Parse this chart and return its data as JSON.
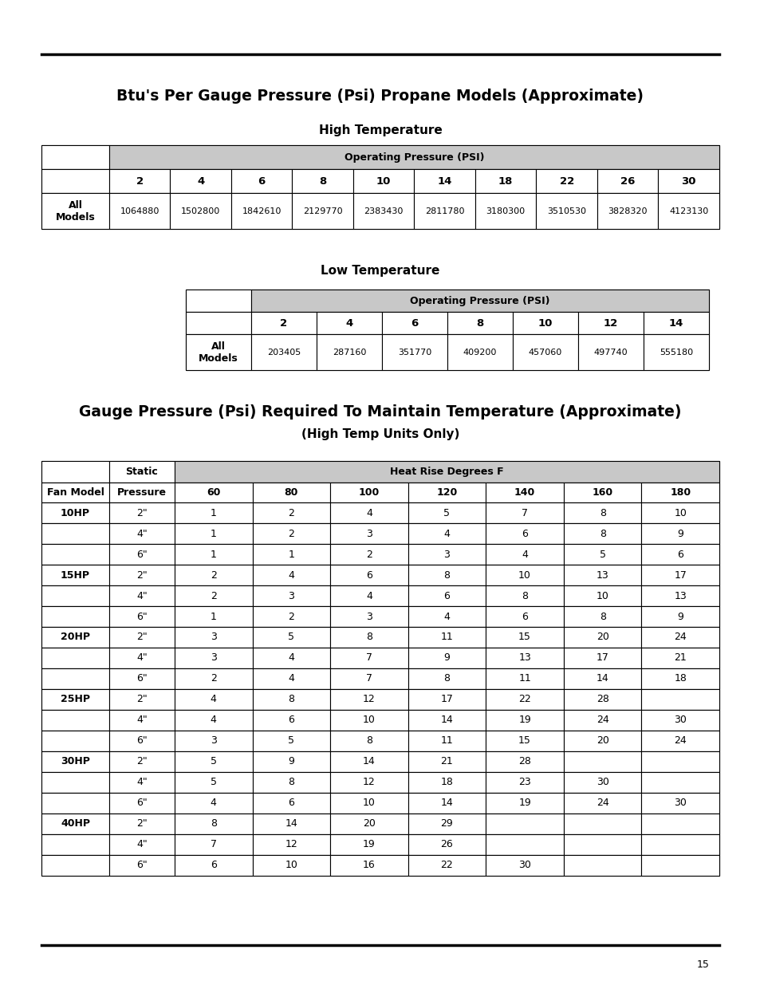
{
  "title1": "Btu's Per Gauge Pressure (Psi) Propane Models (Approximate)",
  "subtitle_high": "High Temperature",
  "subtitle_low": "Low Temperature",
  "title2": "Gauge Pressure (Psi) Required To Maintain Temperature (Approximate)",
  "subtitle2": "(High Temp Units Only)",
  "high_temp_header": "Operating Pressure (PSI)",
  "high_temp_cols": [
    "2",
    "4",
    "6",
    "8",
    "10",
    "14",
    "18",
    "22",
    "26",
    "30"
  ],
  "high_temp_data": [
    "1064880",
    "1502800",
    "1842610",
    "2129770",
    "2383430",
    "2811780",
    "3180300",
    "3510530",
    "3828320",
    "4123130"
  ],
  "low_temp_header": "Operating Pressure (PSI)",
  "low_temp_cols": [
    "2",
    "4",
    "6",
    "8",
    "10",
    "12",
    "14"
  ],
  "low_temp_data": [
    "203405",
    "287160",
    "351770",
    "409200",
    "457060",
    "497740",
    "555180"
  ],
  "gauge_header1": "Static",
  "gauge_header2": "Pressure",
  "gauge_fan_label": "Fan Model",
  "gauge_heat_header": "Heat Rise Degrees F",
  "gauge_cols": [
    "60",
    "80",
    "100",
    "120",
    "140",
    "160",
    "180"
  ],
  "gauge_rows": [
    {
      "fan": "10HP",
      "static": "2\"",
      "vals": [
        "1",
        "2",
        "4",
        "5",
        "7",
        "8",
        "10"
      ]
    },
    {
      "fan": "",
      "static": "4\"",
      "vals": [
        "1",
        "2",
        "3",
        "4",
        "6",
        "8",
        "9"
      ]
    },
    {
      "fan": "",
      "static": "6\"",
      "vals": [
        "1",
        "1",
        "2",
        "3",
        "4",
        "5",
        "6"
      ]
    },
    {
      "fan": "15HP",
      "static": "2\"",
      "vals": [
        "2",
        "4",
        "6",
        "8",
        "10",
        "13",
        "17"
      ]
    },
    {
      "fan": "",
      "static": "4\"",
      "vals": [
        "2",
        "3",
        "4",
        "6",
        "8",
        "10",
        "13"
      ]
    },
    {
      "fan": "",
      "static": "6\"",
      "vals": [
        "1",
        "2",
        "3",
        "4",
        "6",
        "8",
        "9"
      ]
    },
    {
      "fan": "20HP",
      "static": "2\"",
      "vals": [
        "3",
        "5",
        "8",
        "11",
        "15",
        "20",
        "24"
      ]
    },
    {
      "fan": "",
      "static": "4\"",
      "vals": [
        "3",
        "4",
        "7",
        "9",
        "13",
        "17",
        "21"
      ]
    },
    {
      "fan": "",
      "static": "6\"",
      "vals": [
        "2",
        "4",
        "7",
        "8",
        "11",
        "14",
        "18"
      ]
    },
    {
      "fan": "25HP",
      "static": "2\"",
      "vals": [
        "4",
        "8",
        "12",
        "17",
        "22",
        "28",
        ""
      ]
    },
    {
      "fan": "",
      "static": "4\"",
      "vals": [
        "4",
        "6",
        "10",
        "14",
        "19",
        "24",
        "30"
      ]
    },
    {
      "fan": "",
      "static": "6\"",
      "vals": [
        "3",
        "5",
        "8",
        "11",
        "15",
        "20",
        "24"
      ]
    },
    {
      "fan": "30HP",
      "static": "2\"",
      "vals": [
        "5",
        "9",
        "14",
        "21",
        "28",
        "",
        ""
      ]
    },
    {
      "fan": "",
      "static": "4\"",
      "vals": [
        "5",
        "8",
        "12",
        "18",
        "23",
        "30",
        ""
      ]
    },
    {
      "fan": "",
      "static": "6\"",
      "vals": [
        "4",
        "6",
        "10",
        "14",
        "19",
        "24",
        "30"
      ]
    },
    {
      "fan": "40HP",
      "static": "2\"",
      "vals": [
        "8",
        "14",
        "20",
        "29",
        "",
        "",
        ""
      ]
    },
    {
      "fan": "",
      "static": "4\"",
      "vals": [
        "7",
        "12",
        "19",
        "26",
        "",
        "",
        ""
      ]
    },
    {
      "fan": "",
      "static": "6\"",
      "vals": [
        "6",
        "10",
        "16",
        "22",
        "30",
        "",
        ""
      ]
    }
  ],
  "page_number": "15",
  "bg_color": "#ffffff",
  "text_color": "#000000",
  "header_bg": "#d0d0d0"
}
